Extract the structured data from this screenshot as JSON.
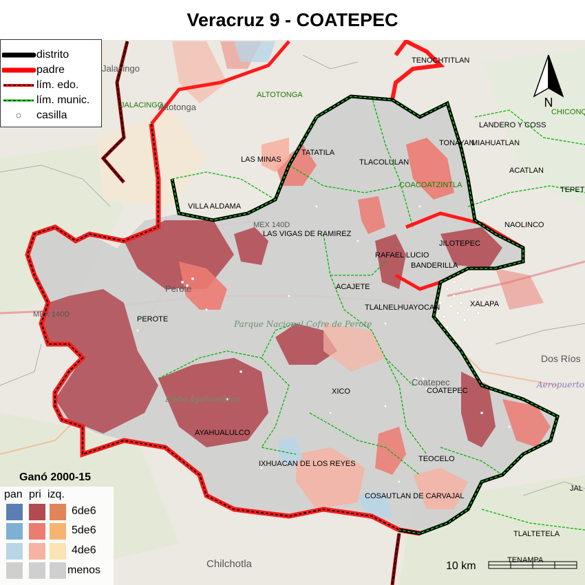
{
  "title": "Veracruz 9 - COATEPEC",
  "legend": {
    "items": [
      {
        "label": "distrito"
      },
      {
        "label": "padre"
      },
      {
        "label": "lím. edo."
      },
      {
        "label": "lím. munic."
      },
      {
        "label": "casilla"
      }
    ]
  },
  "winner_legend": {
    "title": "Ganó 2000-15",
    "columns": [
      "pan",
      "pri",
      "izq."
    ],
    "rows": [
      "6de6",
      "5de6",
      "4de6",
      "menos"
    ],
    "colors": {
      "pan": [
        "#5b7fb3",
        "#7fb0d4",
        "#b9d5e6",
        "#cfcfcf"
      ],
      "pri": [
        "#b24a52",
        "#ec7b72",
        "#f6b3a3",
        "#cfcfcf"
      ],
      "izq": [
        "#e0845a",
        "#f6b473",
        "#fbe3b4",
        "#cfcfcf"
      ]
    }
  },
  "municipalities": [
    "TENOCHTITLAN",
    "ALTOTONGA",
    "JALACINGO",
    "LAS MINAS",
    "TATATILA",
    "TLACOLULAN",
    "COACOATZINTLA",
    "TONAYAN",
    "JILOTEPEC",
    "RAFAEL LUCIO",
    "BANDERILLA",
    "XALAPA",
    "TLALNELHUAYOCAN",
    "ACAJETE",
    "LAS VIGAS DE RAMIREZ",
    "VILLA ALDAMA",
    "PEROTE",
    "XICO",
    "COATEPEC",
    "AYAHUALULCO",
    "IXHUACAN DE LOS REYES",
    "TEOCELO",
    "COSAUTLAN DE CARVAJAL",
    "LANDERO Y COSS",
    "NAOLINCO",
    "ACATLAN",
    "MIAHUATLAN",
    "CHICONQ",
    "TEPET",
    "TLALTETELA",
    "TENAMPA",
    "JAL"
  ],
  "background_labels": [
    "Jalacingo",
    "Altotonga",
    "Perote",
    "Chilchotla",
    "Dos Ríos",
    "Parque Nacional Cofre de Perote",
    "Ejido Ayahualulco",
    "Aeropuerto Nacional",
    "MEX 140D",
    "MEX 140D",
    "Coatepec"
  ],
  "compass_label": "N",
  "scale": {
    "label": "10 km"
  },
  "colors": {
    "distrito": "#000000",
    "padre": "#ff0000",
    "lim_edo": "#ff0000",
    "lim_munic": "#00cc00",
    "base_gray": "#cfcfcf",
    "pri_dark": "#b24a52",
    "pri_mid": "#ec7b72",
    "pri_light": "#f6b3a3"
  }
}
